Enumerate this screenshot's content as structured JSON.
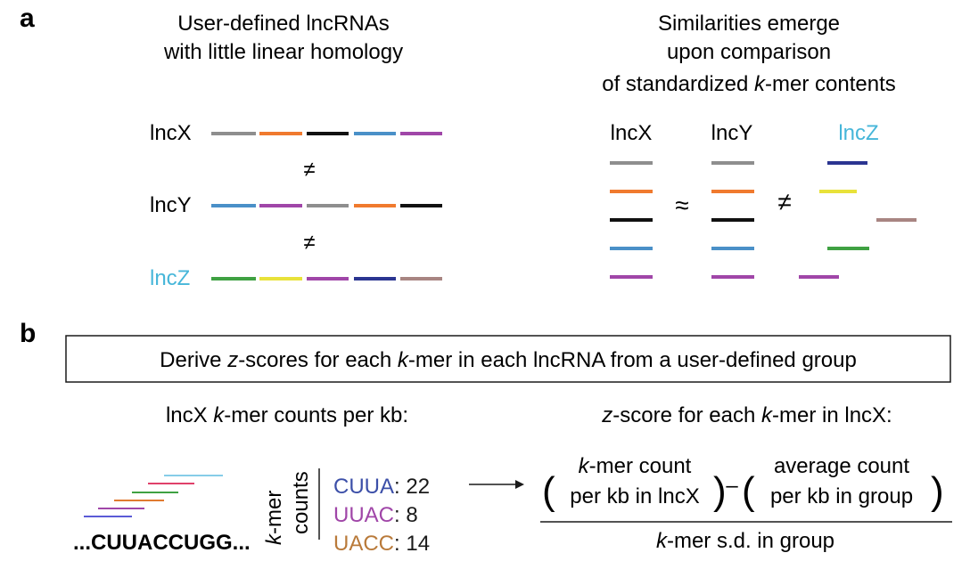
{
  "panel_a": {
    "letter": "a",
    "left_title_line1": "User-defined lncRNAs",
    "left_title_line2": "with little linear homology",
    "right_title_line1": "Similarities emerge",
    "right_title_line2": "upon comparison",
    "right_title_line3_pre": "of standardized ",
    "right_title_line3_k": "k",
    "right_title_line3_post": "-mer contents",
    "rna_x": "lncX",
    "rna_y": "lncY",
    "rna_z": "lncZ",
    "neq": "≠",
    "approx": "≈",
    "colors": {
      "gray": "#8e8e8e",
      "orange": "#f07a2e",
      "black": "#111111",
      "blue": "#4a90c8",
      "purple": "#a046a8",
      "green": "#3fa142",
      "yellow": "#e8e23a",
      "navy": "#2b3591",
      "brown": "#a88582",
      "lncz_label": "#46b6d9"
    }
  },
  "panel_b": {
    "letter": "b",
    "box_text_1": "Derive ",
    "box_text_z": "z",
    "box_text_2": "-scores for each ",
    "box_text_k": "k",
    "box_text_3": "-mer in each lncRNA from a user-defined group",
    "counts_title_pre": "lncX ",
    "counts_title_k": "k",
    "counts_title_post": "-mer counts per kb:",
    "sequence": "...CUUACCUGG...",
    "axis_label_k": "k",
    "axis_label_mer": "-mer",
    "axis_label_counts": "counts",
    "kmers": [
      {
        "name": "CUUA",
        "count": ": 22",
        "color": "#3c4fa8"
      },
      {
        "name": "UUAC",
        "count": ": 8",
        "color": "#a046a8"
      },
      {
        "name": "UACC",
        "count": ": 14",
        "color": "#b97a3a"
      }
    ],
    "zscore_title_z": "z",
    "zscore_title_post": "-score for each ",
    "zscore_title_k": "k",
    "zscore_title_end": "-mer in lncX:",
    "num_left_line1_k": "k",
    "num_left_line1_post": "-mer count",
    "num_left_line2": "per kb in lncX",
    "minus": "–",
    "num_right_line1": "average count",
    "num_right_line2": "per kb in group",
    "denom_k": "k",
    "denom_post": "-mer s.d. in group",
    "read_colors": [
      "#5b5bd6",
      "#a046a8",
      "#e07a30",
      "#3fa142",
      "#e0406a",
      "#86cde8"
    ]
  }
}
